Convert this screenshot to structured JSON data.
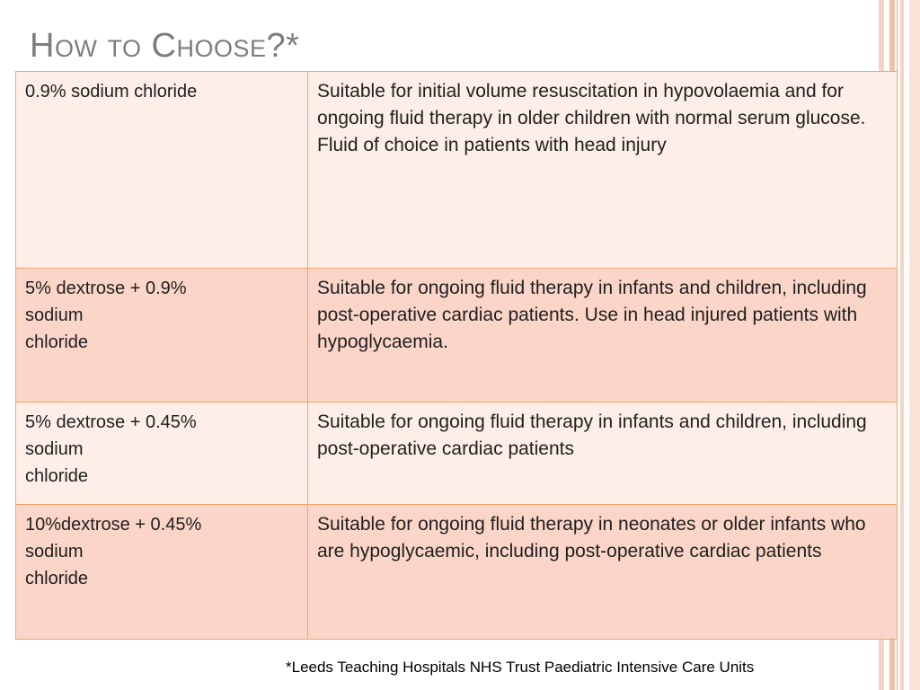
{
  "slide": {
    "title": "How to Choose?*",
    "rows": [
      {
        "fluid_lines": [
          "0.9% sodium chloride"
        ],
        "use": "Suitable for initial volume resuscitation in hypovolaemia and for ongoing fluid therapy in older children with normal serum glucose. Fluid of choice in patients with head injury"
      },
      {
        "fluid_lines": [
          "5% dextrose + 0.9%",
          "sodium",
          "chloride"
        ],
        "use": "Suitable for ongoing fluid therapy in infants and children, including post-operative cardiac patients. Use in head injured patients with hypoglycaemia."
      },
      {
        "fluid_lines": [
          "5% dextrose + 0.45%",
          "sodium",
          "chloride"
        ],
        "use": "Suitable for ongoing fluid therapy in infants and children, including post-operative cardiac patients"
      },
      {
        "fluid_lines": [
          "10%dextrose + 0.45%",
          "sodium",
          "chloride"
        ],
        "use": "Suitable for ongoing fluid therapy in neonates or older infants who are hypoglycaemic, including post-operative cardiac patients"
      }
    ],
    "footnote": "*Leeds Teaching Hospitals NHS Trust Paediatric Intensive Care Units"
  },
  "colors": {
    "title": "#7d7d7d",
    "table_border": "#f2a46e",
    "row_light": "#fdeee7",
    "row_dark": "#fbd5c8",
    "accent_stripe": "#f2c0a8"
  }
}
